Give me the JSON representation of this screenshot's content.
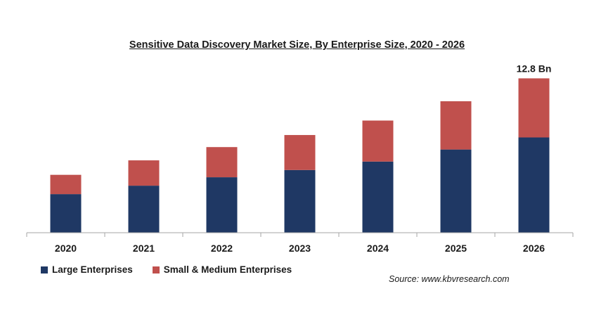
{
  "chart_data": {
    "type": "bar",
    "stacked": true,
    "title": "Sensitive Data Discovery Market Size, By Enterprise Size, 2020 - 2026",
    "categories": [
      "2020",
      "2021",
      "2022",
      "2023",
      "2024",
      "2025",
      "2026"
    ],
    "series": [
      {
        "name": "Large Enterprises",
        "color": "#1f3864",
        "values": [
          3.2,
          3.9,
          4.6,
          5.2,
          5.9,
          6.9,
          7.9
        ]
      },
      {
        "name": "Small & Medium Enterprises",
        "color": "#c0504d",
        "values": [
          1.6,
          2.1,
          2.5,
          2.9,
          3.4,
          4.0,
          4.9
        ]
      }
    ],
    "annotations": [
      {
        "category": "2026",
        "text": "12.8 Bn"
      }
    ],
    "ylim": [
      0,
      13.0
    ],
    "grid": false,
    "legend_position": "bottom-left"
  },
  "source": "Source: www.kbvresearch.com"
}
